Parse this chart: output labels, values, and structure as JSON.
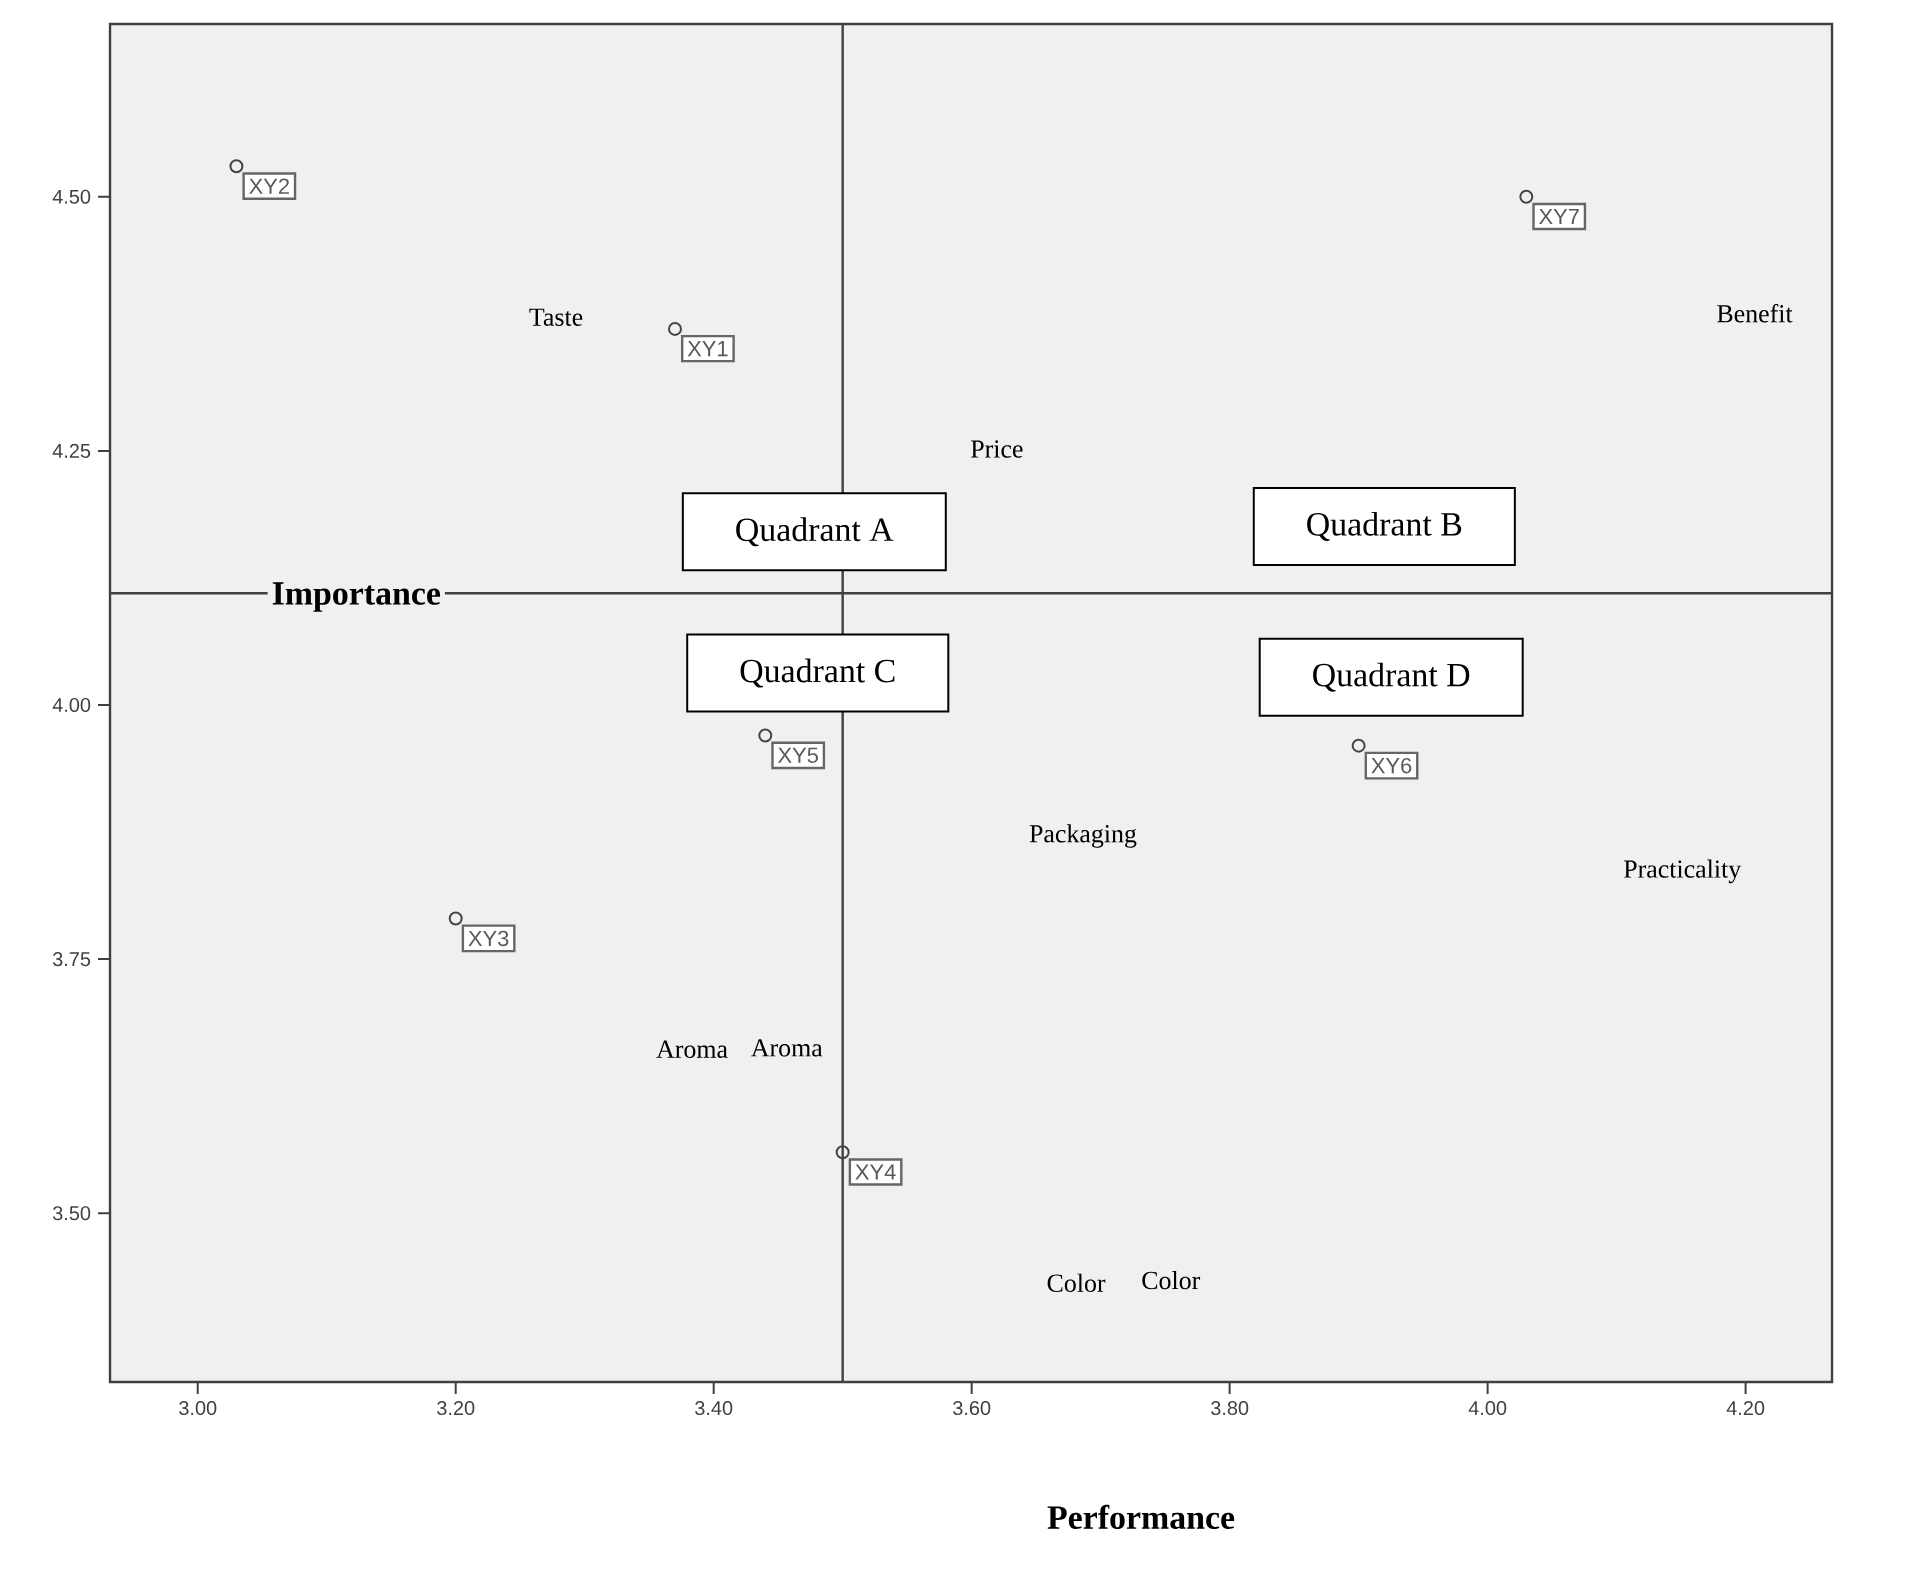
{
  "chart_data": {
    "type": "scatter",
    "xlabel": "Performance",
    "ylabel": "Importance",
    "xlim": [
      2.932,
      4.267
    ],
    "ylim": [
      3.334,
      4.67
    ],
    "xticks": [
      {
        "value": 3.0,
        "label": "3.00"
      },
      {
        "value": 3.2,
        "label": "3.20"
      },
      {
        "value": 3.4,
        "label": "3.40"
      },
      {
        "value": 3.6,
        "label": "3.60"
      },
      {
        "value": 3.8,
        "label": "3.80"
      },
      {
        "value": 4.0,
        "label": "4.00"
      },
      {
        "value": 4.2,
        "label": "4.20"
      }
    ],
    "yticks": [
      {
        "value": 3.5,
        "label": "3.50"
      },
      {
        "value": 3.75,
        "label": "3.75"
      },
      {
        "value": 4.0,
        "label": "4.00"
      },
      {
        "value": 4.25,
        "label": "4.25"
      },
      {
        "value": 4.5,
        "label": "4.50"
      }
    ],
    "marker": "circle",
    "series": [
      {
        "color": "#444444",
        "x": [
          3.37,
          3.03,
          3.2,
          3.5,
          3.44,
          3.9,
          4.03
        ],
        "values": [
          4.37,
          4.53,
          3.79,
          3.56,
          3.97,
          3.96,
          4.5
        ],
        "value_labels": [
          "XY1",
          "XY2",
          "XY3",
          "XY4",
          "XY5",
          "XY6",
          "XY7"
        ]
      }
    ],
    "ref_lines": [
      {
        "axis": "x",
        "value": 3.5
      },
      {
        "axis": "y",
        "value": 4.11
      }
    ],
    "annotations": [
      "Quadrant A",
      "Quadrant B",
      "Quadrant C",
      "Quadrant D",
      "Taste",
      "Price",
      "Benefit",
      "Packaging",
      "Practicality",
      "Aroma",
      "Aroma",
      "Color",
      "Color"
    ]
  }
}
